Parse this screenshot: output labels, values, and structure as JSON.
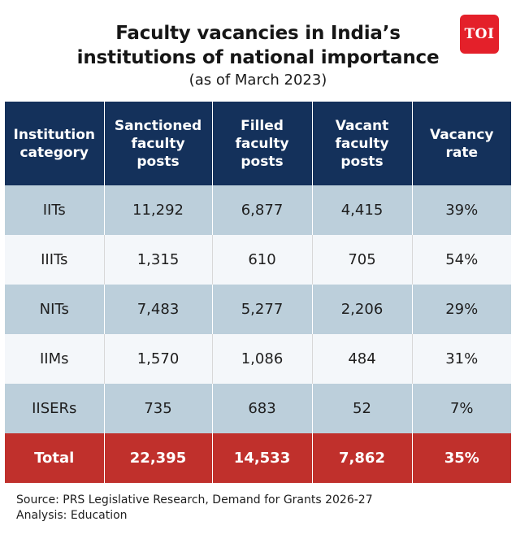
{
  "header": {
    "title_line1": "Faculty vacancies in India’s",
    "title_line2": "institutions of national importance",
    "subtitle": "(as of March 2023)",
    "logo_text": "TOI"
  },
  "table": {
    "columns": [
      "Institution category",
      "Sanctioned faculty posts",
      "Filled faculty posts",
      "Vacant faculty posts",
      "Vacancy rate"
    ],
    "rows": [
      [
        "IITs",
        "11,292",
        "6,877",
        "4,415",
        "39%"
      ],
      [
        "IIITs",
        "1,315",
        "610",
        "705",
        "54%"
      ],
      [
        "NITs",
        "7,483",
        "5,277",
        "2,206",
        "29%"
      ],
      [
        "IIMs",
        "1,570",
        "1,086",
        "484",
        "31%"
      ],
      [
        "IISERs",
        "735",
        "683",
        "52",
        "7%"
      ]
    ],
    "total": [
      "Total",
      "22,395",
      "14,533",
      "7,862",
      "35%"
    ]
  },
  "footer": {
    "source_line1": "Source: PRS Legislative Research, Demand for Grants 2026-27",
    "source_line2": "Analysis: Education"
  },
  "colors": {
    "header_bg": "#14315b",
    "shaded_row": "#bccfdb",
    "plain_row": "#f4f7fa",
    "total_row": "#c0302c",
    "logo_bg": "#e4202a"
  }
}
